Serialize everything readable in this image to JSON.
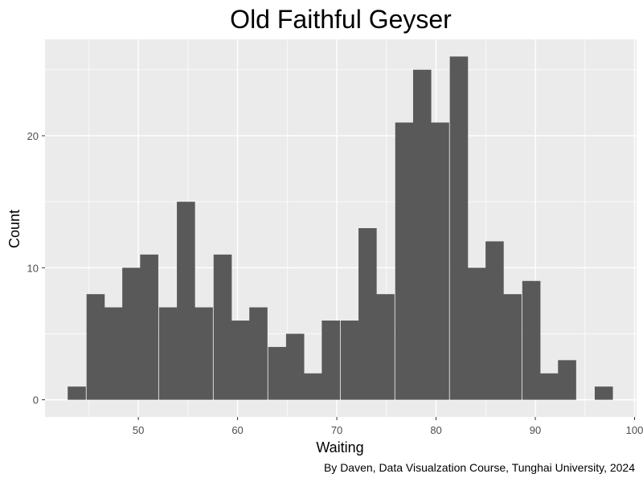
{
  "chart_data": {
    "type": "bar",
    "title": "Old Faithful Geyser",
    "xlabel": "Waiting",
    "ylabel": "Count",
    "caption": "By Daven, Data Visualzation Course, Tunghai University, 2024",
    "xlim": [
      40.6,
      100.2
    ],
    "ylim": [
      -1.3,
      27.3
    ],
    "xticks": [
      50,
      60,
      70,
      80,
      90,
      100
    ],
    "xtick_labels": [
      "50",
      "60",
      "70",
      "80",
      "90",
      "100"
    ],
    "yticks": [
      0,
      10,
      20
    ],
    "ytick_labels": [
      "0",
      "10",
      "20"
    ],
    "grid": true,
    "bin_width": 1.83,
    "bins": [
      {
        "center": 43.8,
        "count": 1
      },
      {
        "center": 45.7,
        "count": 8
      },
      {
        "center": 47.5,
        "count": 7
      },
      {
        "center": 49.3,
        "count": 10
      },
      {
        "center": 51.1,
        "count": 11
      },
      {
        "center": 53.0,
        "count": 7
      },
      {
        "center": 54.8,
        "count": 15
      },
      {
        "center": 56.6,
        "count": 7
      },
      {
        "center": 58.5,
        "count": 11
      },
      {
        "center": 60.3,
        "count": 6
      },
      {
        "center": 62.1,
        "count": 7
      },
      {
        "center": 64.0,
        "count": 4
      },
      {
        "center": 65.8,
        "count": 5
      },
      {
        "center": 67.6,
        "count": 2
      },
      {
        "center": 69.4,
        "count": 6
      },
      {
        "center": 71.3,
        "count": 6
      },
      {
        "center": 73.1,
        "count": 13
      },
      {
        "center": 74.9,
        "count": 8
      },
      {
        "center": 76.8,
        "count": 21
      },
      {
        "center": 78.6,
        "count": 25
      },
      {
        "center": 80.4,
        "count": 21
      },
      {
        "center": 82.3,
        "count": 26
      },
      {
        "center": 84.1,
        "count": 10
      },
      {
        "center": 85.9,
        "count": 12
      },
      {
        "center": 87.7,
        "count": 8
      },
      {
        "center": 89.6,
        "count": 9
      },
      {
        "center": 91.4,
        "count": 2
      },
      {
        "center": 93.2,
        "count": 3
      },
      {
        "center": 95.1,
        "count": 0
      },
      {
        "center": 96.9,
        "count": 1
      }
    ]
  },
  "colors": {
    "panel": "#ebebeb",
    "grid_major": "#ffffff",
    "bar": "#595959",
    "tick": "#333333",
    "tick_text": "#4d4d4d"
  }
}
